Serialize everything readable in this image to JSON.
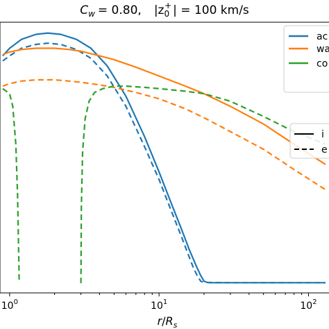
{
  "chart_data": {
    "type": "line",
    "title": "C_w = 0.80,   |z_0^+| = 100 km/s",
    "title_parts": {
      "cw_symbol": "C",
      "cw_sub": "w",
      "cw_value": "= 0.80,",
      "z_symbol": "|z",
      "z_sub": "0",
      "z_sup": "+",
      "z_value": "| = 100 km/s"
    },
    "xlabel": "r/R_s",
    "xlabel_parts": {
      "r": "r",
      "slash": "/",
      "R": "R",
      "sub": "s"
    },
    "xscale": "log",
    "xlim": [
      0.9,
      130
    ],
    "ylim": [
      0,
      1
    ],
    "x_ticks": [
      {
        "value": 1,
        "base": "10",
        "exp": "0"
      },
      {
        "value": 10,
        "base": "10",
        "exp": "1"
      },
      {
        "value": 100,
        "base": "10",
        "exp": "2"
      }
    ],
    "legend_series": {
      "placement": "top-right",
      "entries": [
        {
          "name": "ac",
          "color": "#1f77b4"
        },
        {
          "name": "wa",
          "color": "#ff7f0e"
        },
        {
          "name": "co",
          "color": "#2ca02c"
        }
      ]
    },
    "legend_style": {
      "placement": "right",
      "entries": [
        {
          "name": "i",
          "dash": "solid"
        },
        {
          "name": "e",
          "dash": "dashed"
        }
      ]
    },
    "series": [
      {
        "color": "#1f77b4",
        "dash": "solid",
        "x": [
          0.9,
          1.0,
          1.2,
          1.5,
          1.8,
          2.2,
          2.8,
          3.5,
          4.5,
          6,
          8,
          10,
          12,
          14,
          16,
          18,
          19,
          20,
          21,
          22,
          30,
          50,
          130
        ],
        "y": [
          0.9,
          0.93,
          0.965,
          0.985,
          0.99,
          0.985,
          0.965,
          0.93,
          0.86,
          0.74,
          0.58,
          0.44,
          0.32,
          0.22,
          0.13,
          0.06,
          0.03,
          0.008,
          0.003,
          0.002,
          0.002,
          0.002,
          0.002
        ]
      },
      {
        "color": "#1f77b4",
        "dash": "dashed",
        "x": [
          0.9,
          1.0,
          1.2,
          1.5,
          1.8,
          2.2,
          2.8,
          3.5,
          4.5,
          6,
          8,
          10,
          12,
          14,
          16,
          17,
          18,
          19,
          20,
          30,
          50,
          130
        ],
        "y": [
          0.88,
          0.9,
          0.93,
          0.945,
          0.95,
          0.945,
          0.925,
          0.89,
          0.82,
          0.7,
          0.54,
          0.41,
          0.29,
          0.19,
          0.1,
          0.06,
          0.03,
          0.008,
          0.003,
          0.002,
          0.002,
          0.002
        ]
      },
      {
        "color": "#ff7f0e",
        "dash": "solid",
        "x": [
          0.9,
          1.0,
          1.2,
          1.5,
          2.0,
          2.5,
          3.0,
          4.0,
          5,
          7,
          10,
          15,
          20,
          30,
          50,
          80,
          130
        ],
        "y": [
          0.905,
          0.915,
          0.925,
          0.93,
          0.93,
          0.925,
          0.918,
          0.9,
          0.885,
          0.855,
          0.82,
          0.78,
          0.75,
          0.7,
          0.63,
          0.55,
          0.47
        ]
      },
      {
        "color": "#ff7f0e",
        "dash": "dashed",
        "x": [
          0.9,
          1.0,
          1.2,
          1.5,
          2.0,
          2.5,
          3.0,
          4.0,
          5,
          7,
          10,
          15,
          20,
          30,
          50,
          80,
          130
        ],
        "y": [
          0.78,
          0.79,
          0.8,
          0.805,
          0.805,
          0.8,
          0.795,
          0.785,
          0.775,
          0.755,
          0.73,
          0.69,
          0.655,
          0.6,
          0.53,
          0.45,
          0.37
        ]
      },
      {
        "color": "#2ca02c",
        "dash": "dashed",
        "x": [
          0.9,
          1.0,
          1.05,
          1.1,
          1.13,
          1.15,
          1.16
        ],
        "y": [
          0.77,
          0.75,
          0.7,
          0.55,
          0.35,
          0.12,
          0.0
        ]
      },
      {
        "color": "#2ca02c",
        "dash": "dashed",
        "x": [
          3.0,
          3.02,
          3.08,
          3.2,
          3.4,
          3.7,
          4.2,
          5,
          6,
          8,
          10,
          15,
          20,
          30,
          50,
          80,
          130
        ],
        "y": [
          0.0,
          0.3,
          0.52,
          0.65,
          0.72,
          0.755,
          0.77,
          0.78,
          0.78,
          0.775,
          0.77,
          0.76,
          0.75,
          0.72,
          0.66,
          0.6,
          0.55
        ]
      }
    ]
  }
}
